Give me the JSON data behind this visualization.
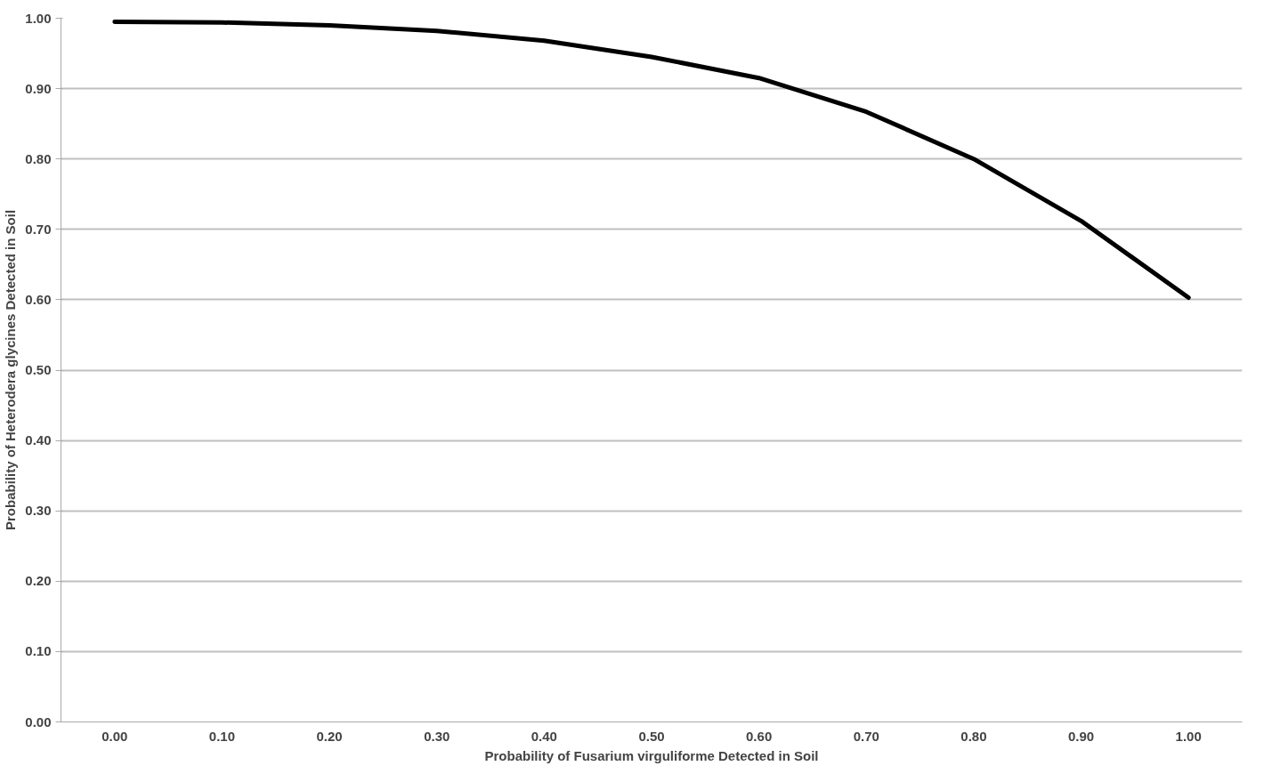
{
  "chart_data": {
    "type": "line",
    "xlabel": "Probability of Fusarium virguliforme Detected in Soil",
    "ylabel": "Probability of Heterodera glycines Detected in Soil",
    "categories": [
      "0.00",
      "0.10",
      "0.20",
      "0.30",
      "0.40",
      "0.50",
      "0.60",
      "0.70",
      "0.80",
      "0.90",
      "1.00"
    ],
    "series": [
      {
        "color": "#000000",
        "values": [
          0.995,
          0.994,
          0.99,
          0.982,
          0.968,
          0.945,
          0.915,
          0.867,
          0.8,
          0.712,
          0.603
        ]
      }
    ],
    "ylim": [
      0,
      1
    ],
    "yticks": [
      {
        "value": 0,
        "label": "0.00"
      },
      {
        "value": 0.1,
        "label": "0.10"
      },
      {
        "value": 0.2,
        "label": "0.20"
      },
      {
        "value": 0.3,
        "label": "0.30"
      },
      {
        "value": 0.4,
        "label": "0.40"
      },
      {
        "value": 0.5,
        "label": "0.50"
      },
      {
        "value": 0.6,
        "label": "0.60"
      },
      {
        "value": 0.7,
        "label": "0.70"
      },
      {
        "value": 0.8,
        "label": "0.80"
      },
      {
        "value": 0.9,
        "label": "0.90"
      },
      {
        "value": 1,
        "label": "1.00"
      }
    ],
    "grid": "y",
    "marker": "none",
    "line_style": "solid"
  }
}
